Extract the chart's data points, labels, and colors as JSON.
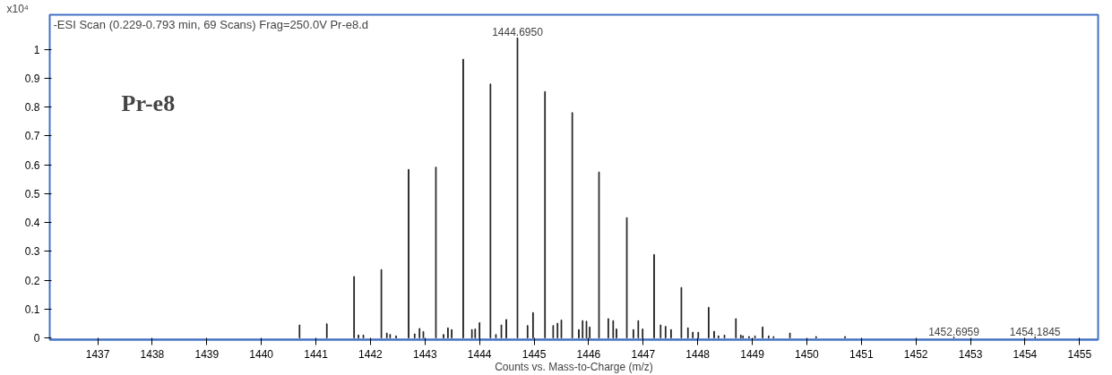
{
  "chart_data": {
    "type": "bar",
    "title": "-ESI Scan (0.229-0.793 min, 69 Scans) Frag=250.0V Pr-e8.d",
    "xlabel": "Counts vs. Mass-to-Charge (m/z)",
    "ylabel": "x10⁴",
    "x": [
      1440.7,
      1441.2,
      1441.7,
      1441.78,
      1441.87,
      1442.2,
      1442.3,
      1442.36,
      1442.47,
      1442.7,
      1442.81,
      1442.9,
      1442.97,
      1443.2,
      1443.34,
      1443.42,
      1443.49,
      1443.7,
      1443.86,
      1443.92,
      1444.0,
      1444.2,
      1444.3,
      1444.4,
      1444.49,
      1444.695,
      1444.88,
      1444.98,
      1445.2,
      1445.35,
      1445.43,
      1445.5,
      1445.7,
      1445.82,
      1445.89,
      1445.96,
      1446.02,
      1446.19,
      1446.36,
      1446.45,
      1446.51,
      1446.7,
      1446.82,
      1446.91,
      1446.99,
      1447.2,
      1447.32,
      1447.41,
      1447.51,
      1447.7,
      1447.82,
      1447.91,
      1448.01,
      1448.2,
      1448.3,
      1448.38,
      1448.49,
      1448.7,
      1448.79,
      1448.83,
      1448.94,
      1449.05,
      1449.19,
      1449.3,
      1449.39,
      1449.69,
      1450.17,
      1450.7,
      1452.6959,
      1454.1845
    ],
    "values": [
      0.045,
      0.049,
      0.213,
      0.01,
      0.01,
      0.237,
      0.017,
      0.012,
      0.007,
      0.584,
      0.014,
      0.033,
      0.022,
      0.592,
      0.012,
      0.035,
      0.029,
      0.966,
      0.029,
      0.031,
      0.053,
      0.88,
      0.012,
      0.045,
      0.064,
      1.04,
      0.043,
      0.088,
      0.854,
      0.043,
      0.051,
      0.062,
      0.781,
      0.029,
      0.06,
      0.058,
      0.038,
      0.575,
      0.067,
      0.06,
      0.031,
      0.417,
      0.029,
      0.06,
      0.031,
      0.289,
      0.045,
      0.04,
      0.029,
      0.175,
      0.035,
      0.02,
      0.02,
      0.106,
      0.023,
      0.007,
      0.01,
      0.067,
      0.01,
      0.007,
      0.005,
      0.007,
      0.038,
      0.007,
      0.005,
      0.017,
      0.005,
      0.005,
      0.003,
      0.003
    ],
    "color": "#222222",
    "xlim": [
      1436.12,
      1455.34
    ],
    "ylim": [
      -0.006,
      1.12
    ],
    "xticks": [
      1437,
      1438,
      1439,
      1440,
      1441,
      1442,
      1443,
      1444,
      1445,
      1446,
      1447,
      1448,
      1449,
      1450,
      1451,
      1452,
      1453,
      1454,
      1455
    ],
    "yticks": [
      0,
      0.1,
      0.2,
      0.3,
      0.4,
      0.5,
      0.6,
      0.7,
      0.8,
      0.9,
      1
    ],
    "grid": false,
    "annotations": [
      {
        "text": "1444.6950",
        "x": 1444.695,
        "y": 1.04
      },
      {
        "text": "1452.6959",
        "x": 1452.6959,
        "y": 0.003
      },
      {
        "text": "1454.1845",
        "x": 1454.1845,
        "y": 0.003
      },
      "Pr-e8"
    ]
  }
}
